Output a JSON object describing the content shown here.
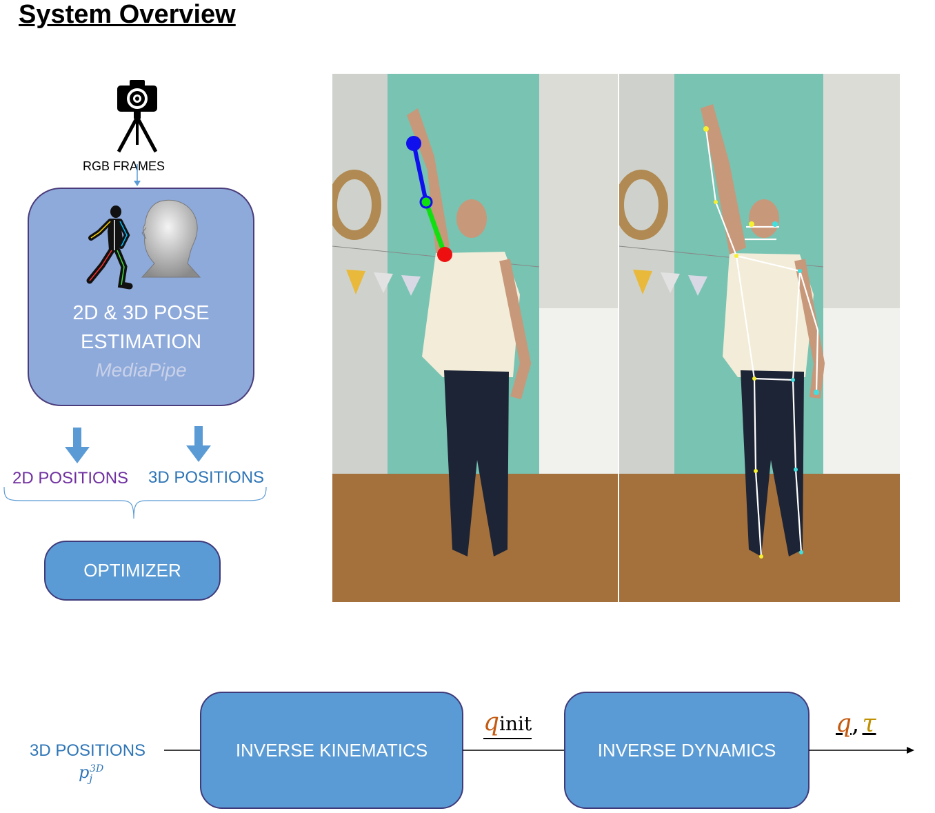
{
  "title": "System Overview",
  "camera": {
    "label": "RGB FRAMES",
    "icon": "camera-tripod-icon"
  },
  "pose_box": {
    "line1": "2D & 3D POSE",
    "line2": "ESTIMATION",
    "sub": "MediaPipe"
  },
  "outputs": {
    "left": "2D POSITIONS",
    "right": "3D POSITIONS"
  },
  "optimizer": {
    "label": "OPTIMIZER"
  },
  "pipeline": {
    "input_label": "3D POSITIONS",
    "input_symbol": "p",
    "input_sub": "j",
    "input_sup": "3D",
    "ik_label": "INVERSE KINEMATICS",
    "mid_symbol": "q",
    "mid_sub": "init",
    "id_label": "INVERSE DYNAMICS",
    "out_q": "q",
    "out_comma": ",",
    "out_tau": "τ"
  },
  "colors": {
    "pose_box": "#8eaadb",
    "blue_box": "#5b9bd5",
    "purple_text": "#7030a0",
    "blue_text": "#2e75b6",
    "arrow": "#5b9bd5",
    "q_color": "#c55a11",
    "tau_color": "#bf9000"
  }
}
